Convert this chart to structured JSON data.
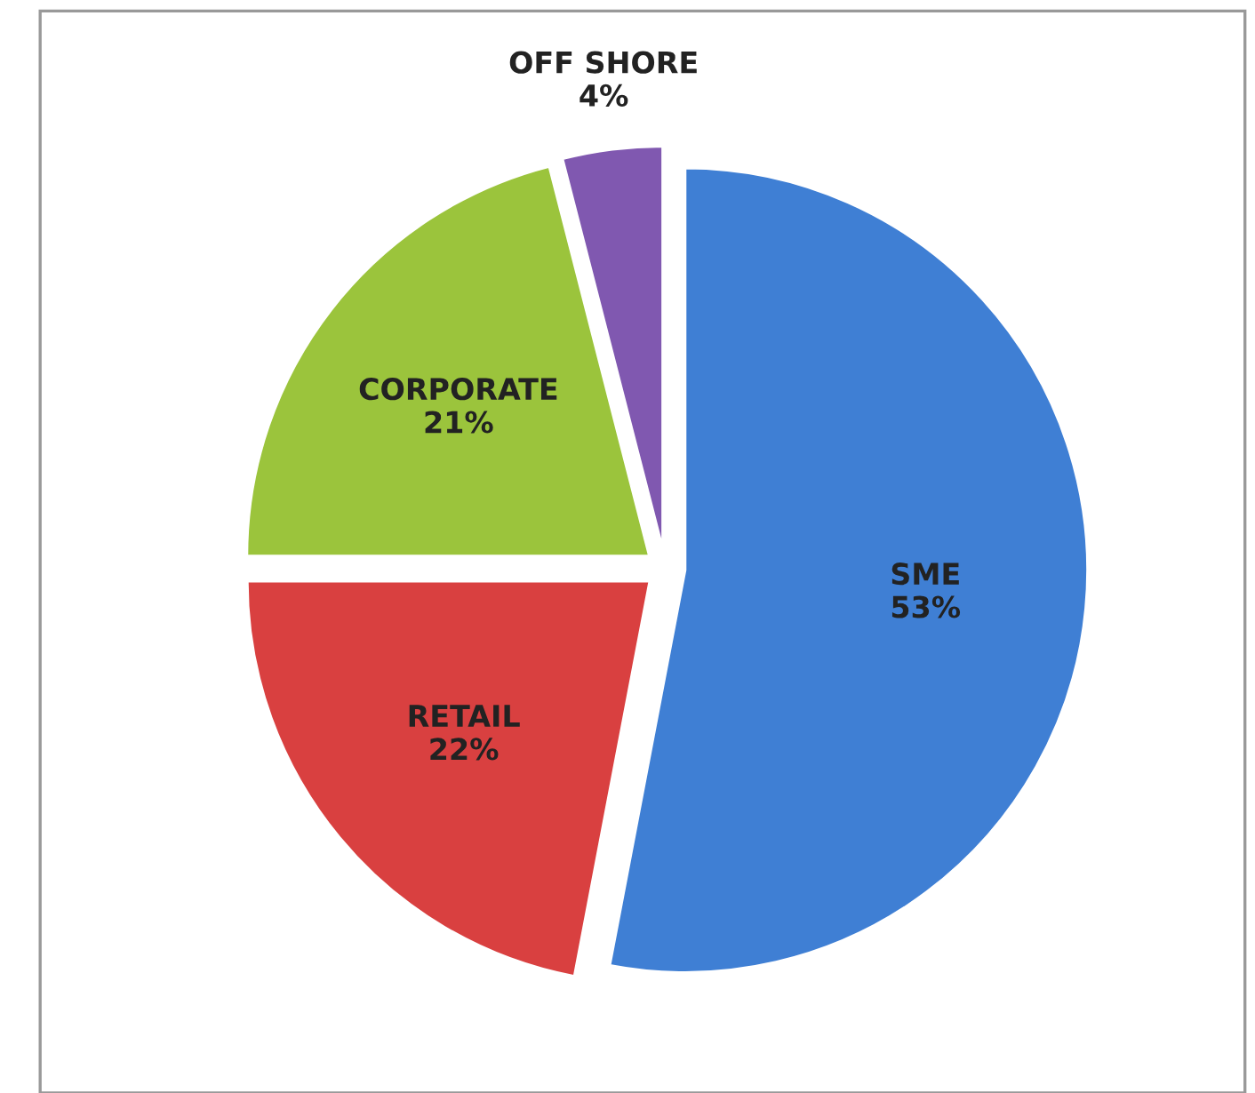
{
  "chart_data": {
    "type": "pie",
    "categories": [
      "SME",
      "RETAIL",
      "CORPORATE",
      "OFF SHORE"
    ],
    "values": [
      53,
      22,
      21,
      4
    ],
    "colors": [
      "#3f7fd4",
      "#d94040",
      "#9bc43c",
      "#8058b0"
    ],
    "value_labels": [
      "53%",
      "22%",
      "21%",
      "4%"
    ]
  }
}
